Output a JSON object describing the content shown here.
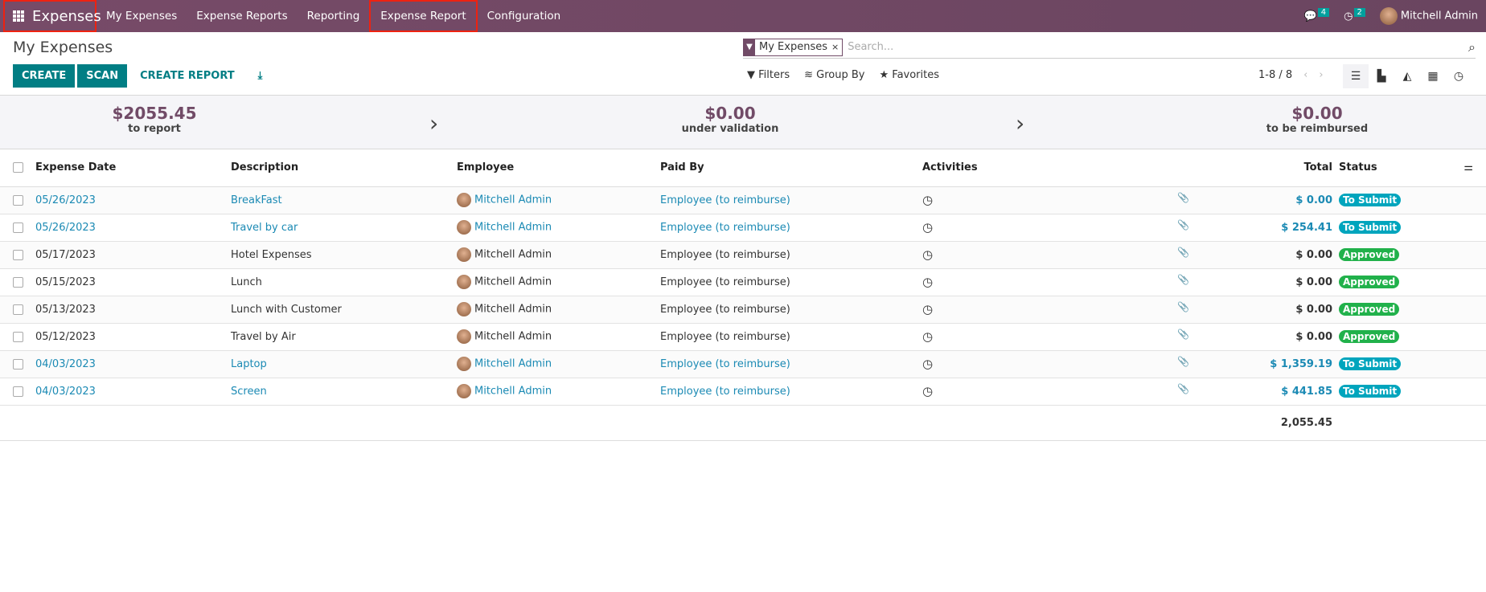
{
  "navbar": {
    "app": "Expenses",
    "menus": [
      "My Expenses",
      "Expense Reports",
      "Reporting",
      "Expense Report",
      "Configuration"
    ],
    "messages_count": "4",
    "activities_count": "2",
    "user": "Mitchell Admin"
  },
  "page": {
    "title": "My Expenses"
  },
  "actions": {
    "create": "CREATE",
    "scan": "SCAN",
    "create_report": "CREATE REPORT"
  },
  "search": {
    "facet": "My Expenses",
    "placeholder": "Search...",
    "filters": "Filters",
    "group_by": "Group By",
    "favorites": "Favorites"
  },
  "pager": {
    "text": "1-8 / 8"
  },
  "summary": [
    {
      "value": "$2055.45",
      "label": "to report"
    },
    {
      "value": "$0.00",
      "label": "under validation"
    },
    {
      "value": "$0.00",
      "label": "to be reimbursed"
    }
  ],
  "table": {
    "headers": [
      "Expense Date",
      "Description",
      "Employee",
      "Paid By",
      "Activities",
      "Total",
      "Status"
    ],
    "rows": [
      {
        "date": "05/26/2023",
        "desc": "BreakFast",
        "emp": "Mitchell Admin",
        "paid": "Employee (to reimburse)",
        "total": "$ 0.00",
        "status": "To Submit"
      },
      {
        "date": "05/26/2023",
        "desc": "Travel by car",
        "emp": "Mitchell Admin",
        "paid": "Employee (to reimburse)",
        "total": "$ 254.41",
        "status": "To Submit"
      },
      {
        "date": "05/17/2023",
        "desc": "Hotel Expenses",
        "emp": "Mitchell Admin",
        "paid": "Employee (to reimburse)",
        "total": "$ 0.00",
        "status": "Approved"
      },
      {
        "date": "05/15/2023",
        "desc": "Lunch",
        "emp": "Mitchell Admin",
        "paid": "Employee (to reimburse)",
        "total": "$ 0.00",
        "status": "Approved"
      },
      {
        "date": "05/13/2023",
        "desc": "Lunch with Customer",
        "emp": "Mitchell Admin",
        "paid": "Employee (to reimburse)",
        "total": "$ 0.00",
        "status": "Approved"
      },
      {
        "date": "05/12/2023",
        "desc": "Travel by Air",
        "emp": "Mitchell Admin",
        "paid": "Employee (to reimburse)",
        "total": "$ 0.00",
        "status": "Approved"
      },
      {
        "date": "04/03/2023",
        "desc": "Laptop",
        "emp": "Mitchell Admin",
        "paid": "Employee (to reimburse)",
        "total": "$ 1,359.19",
        "status": "To Submit"
      },
      {
        "date": "04/03/2023",
        "desc": "Screen",
        "emp": "Mitchell Admin",
        "paid": "Employee (to reimburse)",
        "total": "$ 441.85",
        "status": "To Submit"
      }
    ],
    "grand_total": "2,055.45"
  },
  "colors": {
    "navbar": "#714b67",
    "primary": "#017e84",
    "link": "#1b8ab4",
    "to_submit": "#00a5bd",
    "approved": "#21b14b"
  }
}
